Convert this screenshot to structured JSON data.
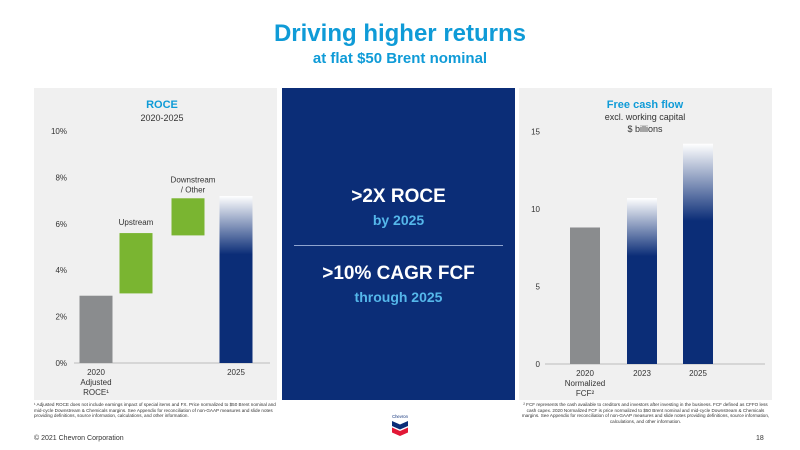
{
  "slide": {
    "title": "Driving higher returns",
    "subtitle": "at flat $50 Brent nominal"
  },
  "center": {
    "line1": ">2X ROCE",
    "line1_sub": "by 2025",
    "line2": ">10% CAGR FCF",
    "line2_sub": "through 2025"
  },
  "footnotes": {
    "left": "¹ Adjusted ROCE does not include earnings impact of special items and FX. Price normalized to $50 Brent nominal and mid-cycle Downstream & Chemicals margins. See Appendix for reconciliation of non-GAAP measures and slide notes providing definitions, source information, calculations, and other information.",
    "right": "² FCF represents the cash available to creditors and investors after investing in the business. FCF defined as CFFO less cash capex. 2020 Normalized FCF is price normalized to $50 Brent nominal and mid-cycle Downstream & Chemicals margins. See Appendix for reconciliation of non-GAAP measures and slide notes providing definitions, source information, calculations, and other information."
  },
  "copyright": "© 2021 Chevron Corporation",
  "page_number": "18",
  "logo_text": "Chevron",
  "colors": {
    "title_blue": "#0f9bd7",
    "navy": "#0b2d77",
    "light_blue": "#55b7ea",
    "gray_bar": "#8a8c8e",
    "green": "#7ab531",
    "panel_bg": "#f0f0f0",
    "logo_red": "#e21836"
  },
  "chart_data": [
    {
      "type": "bar",
      "title": "ROCE",
      "subtitle": "2020-2025",
      "variant": "waterfall",
      "categories": [
        "2020 Adjusted ROCE¹",
        "Upstream",
        "Downstream / Other",
        "2025"
      ],
      "axis_labels": [
        "2020",
        "Adjusted",
        "ROCE¹",
        "",
        "",
        "2025"
      ],
      "bars": [
        {
          "label": "2020 Adjusted ROCE¹",
          "start": 0,
          "end": 2.9,
          "color": "gray"
        },
        {
          "label": "Upstream",
          "start": 3.0,
          "end": 5.6,
          "color": "green"
        },
        {
          "label": "Downstream / Other",
          "start": 5.5,
          "end": 7.1,
          "color": "green"
        },
        {
          "label": "2025",
          "start": 0,
          "end": 7.2,
          "color": "navy"
        }
      ],
      "yticks": [
        "0%",
        "2%",
        "4%",
        "6%",
        "8%",
        "10%"
      ],
      "ylim": [
        0,
        10
      ],
      "y_unit": "%"
    },
    {
      "type": "bar",
      "title": "Free cash flow",
      "subtitle": "excl. working capital",
      "units": "$ billions",
      "categories": [
        "2020 Normalized FCF²",
        "2023",
        "2025"
      ],
      "axis_labels": [
        [
          "2020",
          "Normalized",
          "FCF²"
        ],
        [
          "2023"
        ],
        [
          "2025"
        ]
      ],
      "values": [
        8.8,
        10.7,
        14.2
      ],
      "colors": [
        "gray",
        "navy",
        "navy"
      ],
      "yticks": [
        "0",
        "5",
        "10",
        "15"
      ],
      "ylim": [
        0,
        15.6
      ]
    }
  ]
}
